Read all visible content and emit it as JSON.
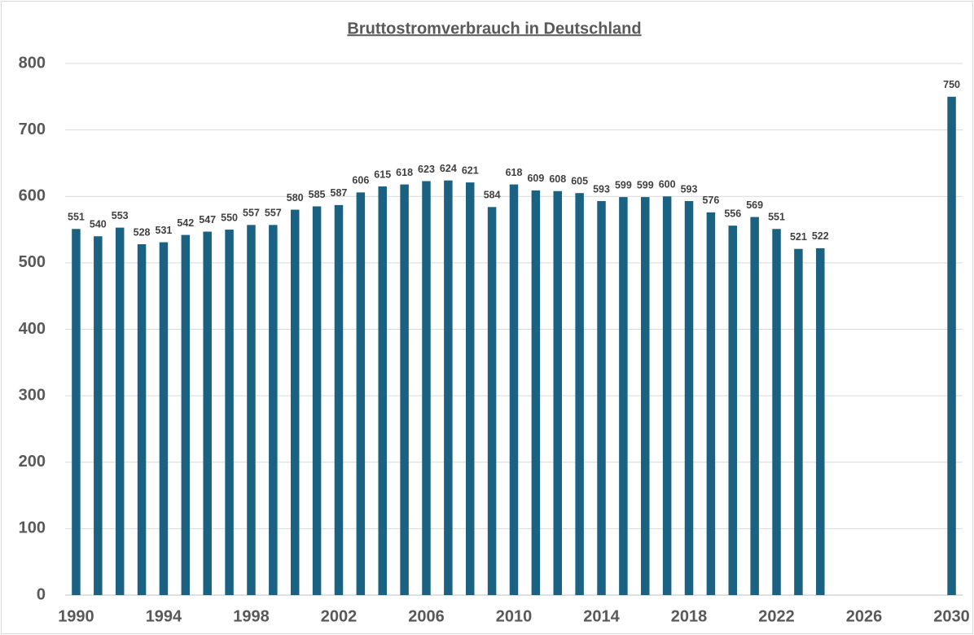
{
  "chart_data": {
    "type": "bar",
    "title": "Bruttostromverbrauch in Deutschland",
    "x": [
      1990,
      1991,
      1992,
      1993,
      1994,
      1995,
      1996,
      1997,
      1998,
      1999,
      2000,
      2001,
      2002,
      2003,
      2004,
      2005,
      2006,
      2007,
      2008,
      2009,
      2010,
      2011,
      2012,
      2013,
      2014,
      2015,
      2016,
      2017,
      2018,
      2019,
      2020,
      2021,
      2022,
      2023,
      2024,
      2030
    ],
    "values": [
      551,
      540,
      553,
      528,
      531,
      542,
      547,
      550,
      557,
      557,
      580,
      585,
      587,
      606,
      615,
      618,
      623,
      624,
      621,
      584,
      618,
      609,
      608,
      605,
      593,
      599,
      599,
      600,
      593,
      576,
      556,
      569,
      551,
      521,
      522,
      750
    ],
    "color": "#1b6282",
    "xlim": [
      1989.5,
      2030.5
    ],
    "xticks": [
      1990,
      1994,
      1998,
      2002,
      2006,
      2010,
      2014,
      2018,
      2022,
      2026,
      2030
    ],
    "ylim": [
      0,
      800
    ],
    "yticks": [
      0,
      100,
      200,
      300,
      400,
      500,
      600,
      700,
      800
    ],
    "grid": true
  }
}
